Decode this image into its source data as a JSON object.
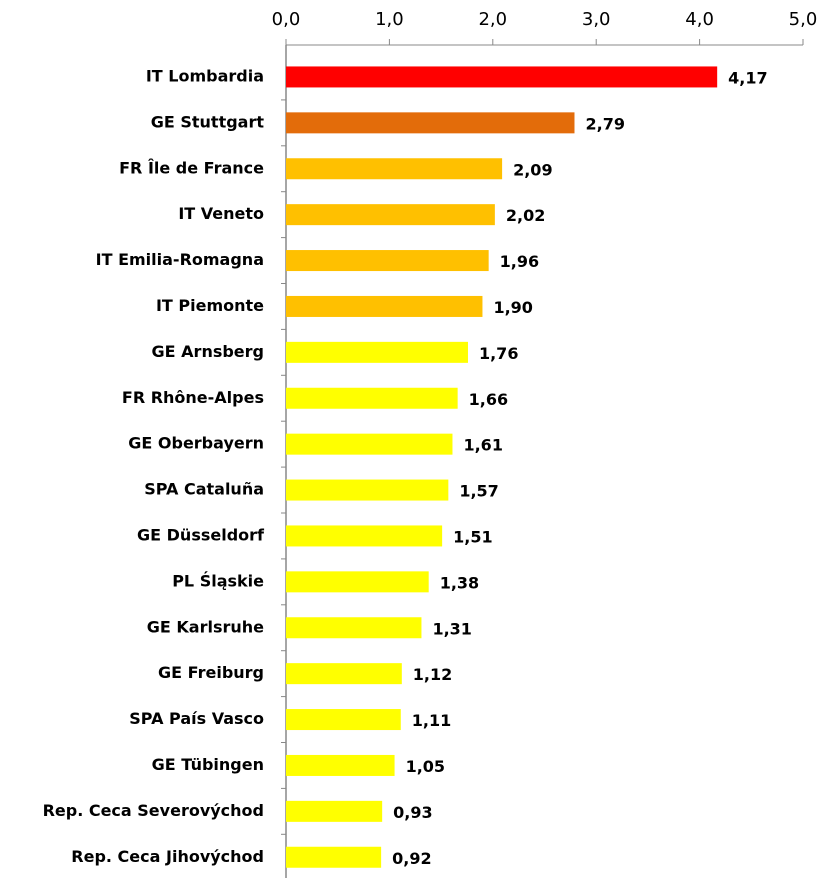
{
  "chart_data": {
    "type": "hbar",
    "categories": [
      "IT Lombardia",
      "GE Stuttgart",
      "FR Île de France",
      "IT Veneto",
      "IT Emilia-Romagna",
      "IT Piemonte",
      "GE Arnsberg",
      "FR Rhône-Alpes",
      "GE Oberbayern",
      "SPA Cataluña",
      "GE Düsseldorf",
      "PL Śląskie",
      "GE Karlsruhe",
      "GE Freiburg",
      "SPA País Vasco",
      "GE Tübingen",
      "Rep. Ceca Severovýchod",
      "Rep. Ceca Jihovýchod"
    ],
    "values": [
      4.17,
      2.79,
      2.09,
      2.02,
      1.96,
      1.9,
      1.76,
      1.66,
      1.61,
      1.57,
      1.51,
      1.38,
      1.31,
      1.12,
      1.11,
      1.05,
      0.93,
      0.92
    ],
    "value_labels": [
      "4,17",
      "2,79",
      "2,09",
      "2,02",
      "1,96",
      "1,90",
      "1,76",
      "1,66",
      "1,61",
      "1,57",
      "1,51",
      "1,38",
      "1,31",
      "1,12",
      "1,11",
      "1,05",
      "0,93",
      "0,92"
    ],
    "colors": [
      "#ff0000",
      "#e36c0a",
      "#ffc000",
      "#ffc000",
      "#ffc000",
      "#ffc000",
      "#ffff00",
      "#ffff00",
      "#ffff00",
      "#ffff00",
      "#ffff00",
      "#ffff00",
      "#ffff00",
      "#ffff00",
      "#ffff00",
      "#ffff00",
      "#ffff00",
      "#ffff00"
    ],
    "xlim": [
      0,
      5
    ],
    "xticks": [
      {
        "value": 0,
        "label": "0,0"
      },
      {
        "value": 1,
        "label": "1,0"
      },
      {
        "value": 2,
        "label": "2,0"
      },
      {
        "value": 3,
        "label": "3,0"
      },
      {
        "value": 4,
        "label": "4,0"
      },
      {
        "value": 5,
        "label": "5,0"
      }
    ]
  }
}
